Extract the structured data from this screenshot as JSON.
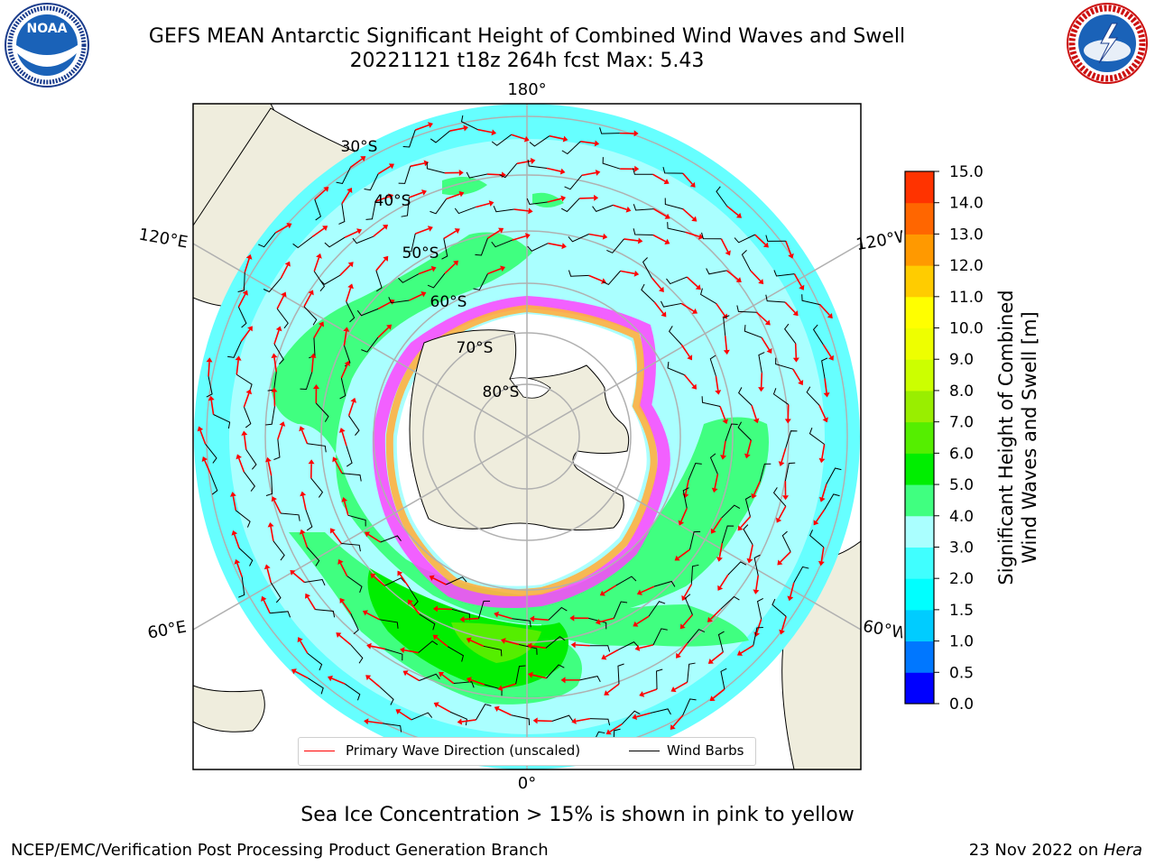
{
  "title": {
    "line1": "GEFS MEAN Antarctic Significant Height of Combined Wind Waves and Swell",
    "line2": "20221121 t18z 264h fcst   Max: 5.43"
  },
  "logos": {
    "left": {
      "name": "NOAA",
      "ring_text": "NATIONAL OCEANIC AND ATMOSPHERIC ADMINISTRATION · U.S. DEPARTMENT OF COMMERCE"
    },
    "right": {
      "name": "NATIONAL WEATHER SERVICE"
    }
  },
  "map": {
    "projection": "south-polar-stereographic",
    "longitude_labels": {
      "top": "180°",
      "bottom": "0°",
      "upper_left": "120°E",
      "upper_right": "120°W",
      "lower_left": "60°E",
      "lower_right": "60°W"
    },
    "latitude_labels": [
      "30°S",
      "40°S",
      "50°S",
      "60°S",
      "70°S",
      "80°S"
    ],
    "grid": true,
    "max_value": 5.43
  },
  "legend": {
    "wave_direction": "Primary Wave Direction (unscaled)",
    "wind_barbs": "Wind Barbs",
    "wave_color": "#ff0000",
    "barb_color": "#000000"
  },
  "colorbar": {
    "label_line1": "Significant Height of Combined",
    "label_line2": "Wind Waves and Swell [m]",
    "ticks": [
      "0.0",
      "0.5",
      "1.0",
      "1.5",
      "2.0",
      "3.0",
      "4.0",
      "5.0",
      "6.0",
      "7.0",
      "8.0",
      "9.0",
      "10.0",
      "11.0",
      "12.0",
      "13.0",
      "14.0",
      "15.0"
    ],
    "colors": [
      "#0000ff",
      "#0077ff",
      "#00ccff",
      "#00ffff",
      "#40ffff",
      "#aaffff",
      "#40ff80",
      "#00ee00",
      "#55ee00",
      "#99ee00",
      "#ccff00",
      "#eeff00",
      "#ffff00",
      "#ffcc00",
      "#ff9900",
      "#ff6600",
      "#ff3300",
      "#ff0000"
    ]
  },
  "ice_note": "Sea Ice Concentration > 15% is shown in pink to yellow",
  "credits": {
    "left": "NCEP/EMC/Verification Post Processing Product Generation Branch",
    "right_date": "23 Nov 2022 on ",
    "right_host": "Hera"
  }
}
